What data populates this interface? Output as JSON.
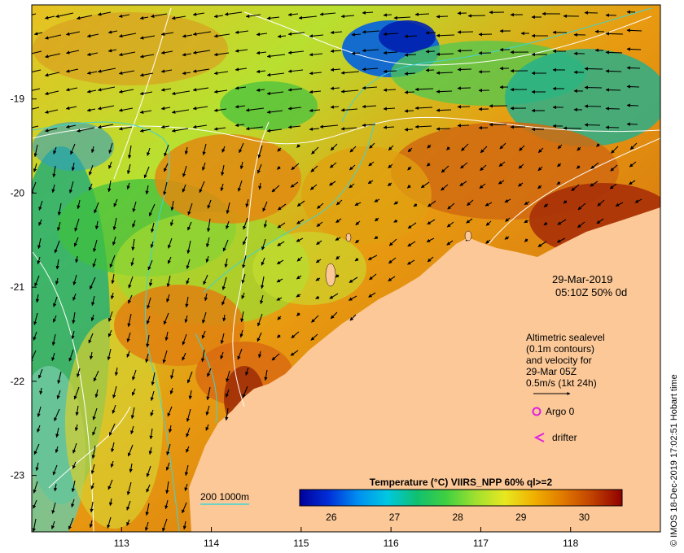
{
  "map": {
    "lon_ticks": [
      "113",
      "114",
      "115",
      "116",
      "117",
      "118"
    ],
    "lat_ticks": [
      "-19",
      "-20",
      "-21",
      "-22",
      "-23"
    ],
    "lon_range": [
      112.0,
      119.0
    ],
    "lat_range": [
      -18.0,
      -23.6
    ],
    "colors": {
      "land": "#fcc897",
      "frame": "#000000",
      "contour": "#ffffff",
      "isobath": "#3fd4d4"
    }
  },
  "info": {
    "date": "29-Mar-2019",
    "time": "05:10Z  50% 0d",
    "altimetry_lines": [
      "Altimetric sealevel",
      "(0.1m contours)",
      "and velocity for",
      "29-Mar 05Z",
      "0.5m/s (1kt 24h)"
    ],
    "argo_label": "Argo 0",
    "drifter_label": "drifter"
  },
  "bathymetry": {
    "label": "200  1000m"
  },
  "colorbar": {
    "title": "Temperature (°C) VIIRS_NPP 60% ql>=2",
    "ticks": [
      "26",
      "27",
      "28",
      "29",
      "30"
    ],
    "range": [
      25.5,
      30.6
    ],
    "colors": [
      "#00009b",
      "#0030d8",
      "#0090f0",
      "#00c8e0",
      "#10c070",
      "#40d040",
      "#a0e030",
      "#e8e820",
      "#f0b000",
      "#e07800",
      "#c04000",
      "#900000"
    ]
  },
  "credit": "© IMOS 18-Dec-2019 17:02:51 Hobart time"
}
